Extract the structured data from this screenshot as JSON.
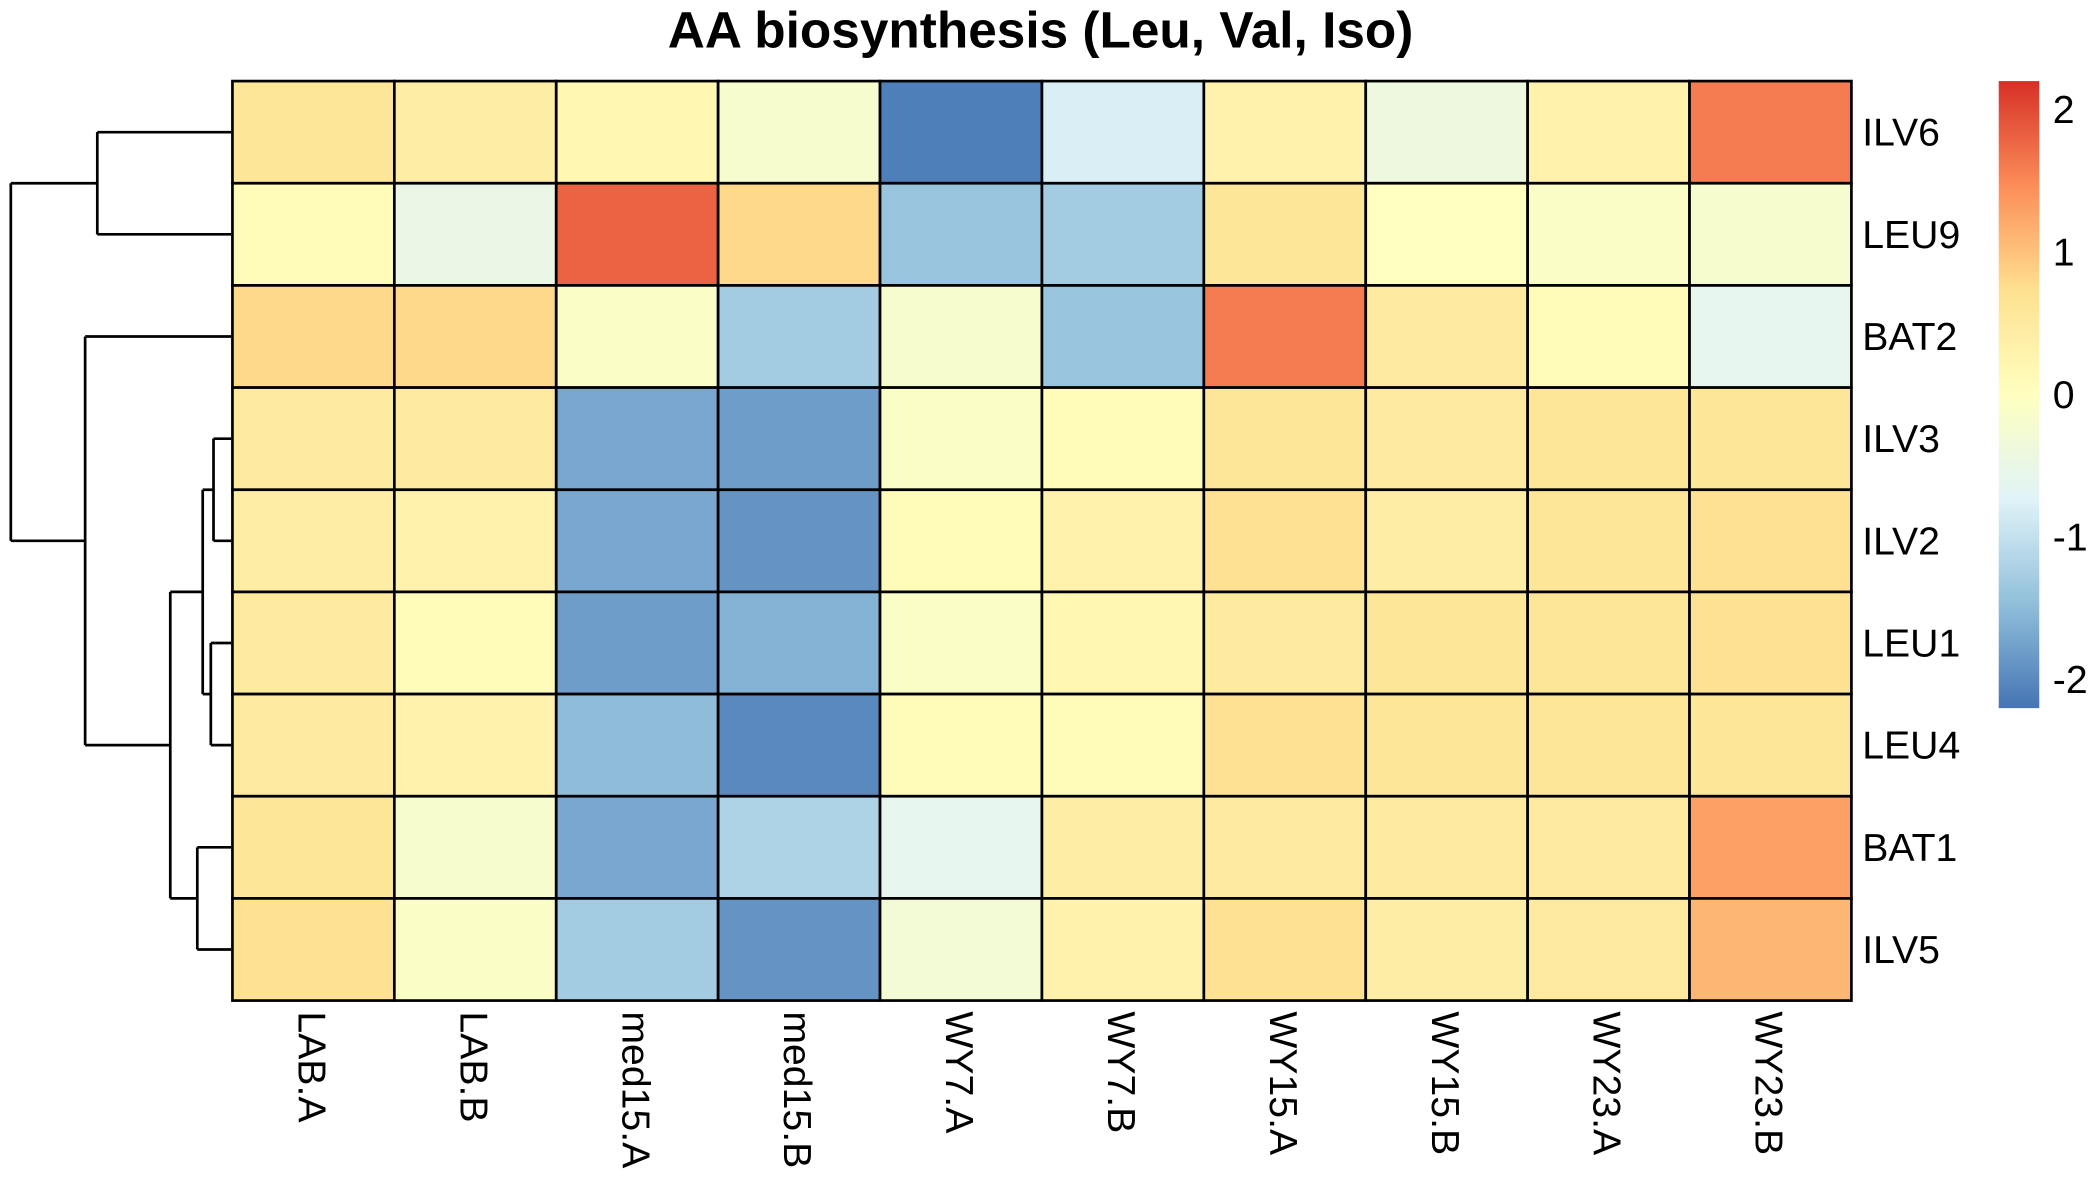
{
  "chart_data": {
    "type": "heatmap",
    "title": "AA biosynthesis (Leu, Val, Iso)",
    "rows": [
      "ILV6",
      "LEU9",
      "BAT2",
      "ILV3",
      "ILV2",
      "LEU1",
      "LEU4",
      "BAT1",
      "ILV5"
    ],
    "columns": [
      "LAB.A",
      "LAB.B",
      "med15.A",
      "med15.B",
      "WY7.A",
      "WY7.B",
      "WY15.A",
      "WY15.B",
      "WY23.A",
      "WY23.B"
    ],
    "values": [
      [
        0.6,
        0.4,
        0.2,
        -0.2,
        -2.1,
        -0.8,
        0.3,
        -0.4,
        0.3,
        1.6
      ],
      [
        0.1,
        -0.5,
        1.8,
        0.8,
        -1.4,
        -1.3,
        0.6,
        0.0,
        -0.1,
        -0.2
      ],
      [
        0.8,
        0.8,
        -0.1,
        -1.3,
        -0.2,
        -1.4,
        1.6,
        0.5,
        0.1,
        -0.6
      ],
      [
        0.5,
        0.5,
        -1.7,
        -1.8,
        -0.1,
        0.1,
        0.6,
        0.5,
        0.6,
        0.6
      ],
      [
        0.4,
        0.3,
        -1.7,
        -1.9,
        0.1,
        0.3,
        0.7,
        0.4,
        0.6,
        0.7
      ],
      [
        0.5,
        0.1,
        -1.8,
        -1.6,
        -0.1,
        0.2,
        0.5,
        0.6,
        0.6,
        0.7
      ],
      [
        0.5,
        0.3,
        -1.5,
        -2.0,
        0.1,
        0.1,
        0.7,
        0.6,
        0.6,
        0.6
      ],
      [
        0.6,
        -0.2,
        -1.7,
        -1.2,
        -0.6,
        0.4,
        0.5,
        0.5,
        0.5,
        1.3
      ],
      [
        0.7,
        -0.1,
        -1.3,
        -1.9,
        -0.3,
        0.3,
        0.7,
        0.4,
        0.5,
        1.1
      ]
    ],
    "color_scale": {
      "range": [
        -2.2,
        2.2
      ],
      "stops": [
        "#4575B4",
        "#91BFDB",
        "#E0F3F8",
        "#FFFFBF",
        "#FEE090",
        "#FC8D59",
        "#D73027"
      ],
      "ticks": [
        2,
        1,
        0,
        -1,
        -2
      ],
      "tick_labels": [
        "2",
        "1",
        "0",
        "-1",
        "-2"
      ]
    },
    "row_dendrogram": true,
    "legend_position": "right"
  }
}
